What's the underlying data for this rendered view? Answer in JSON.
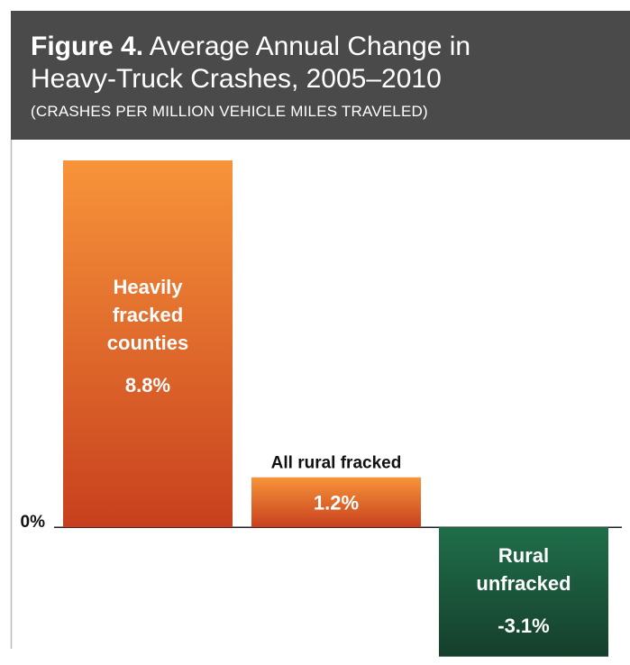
{
  "chart_data": {
    "type": "bar",
    "figure_label": "Figure 4.",
    "title": "Average Annual Change in Heavy-Truck Crashes, 2005–2010",
    "subtitle": "(CRASHES PER MILLION VEHICLE MILES TRAVELED)",
    "categories": [
      "Heavily fracked counties",
      "All rural fracked",
      "Rural unfracked"
    ],
    "values": [
      8.8,
      1.2,
      -3.1
    ],
    "value_labels": [
      "8.8%",
      "1.2%",
      "-3.1%"
    ],
    "colors": [
      [
        "#f7943a",
        "#c8401e"
      ],
      [
        "#f7943a",
        "#c8401e"
      ],
      [
        "#1f6e4a",
        "#163f2c"
      ]
    ],
    "ylim": [
      -3.15,
      8.8
    ],
    "yticks": [
      {
        "value": 0,
        "label": "0%"
      }
    ]
  }
}
